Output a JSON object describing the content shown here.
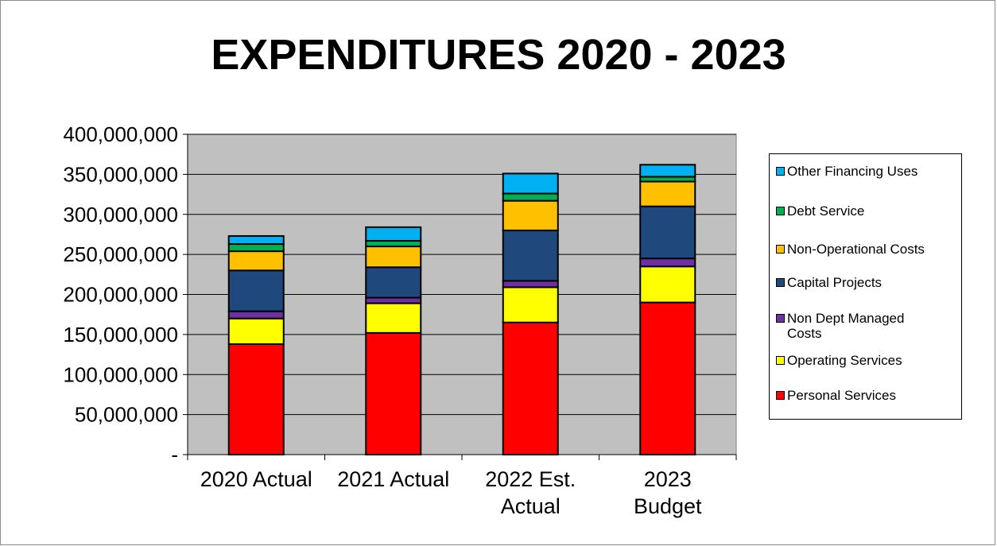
{
  "chart_data": {
    "type": "bar",
    "stacked": true,
    "title": "EXPENDITURES 2020 - 2023",
    "categories": [
      "2020 Actual",
      "2021 Actual",
      "2022 Est. Actual",
      "2023 Budget"
    ],
    "ylim": [
      0,
      400000000
    ],
    "yticks": [
      "-",
      "50,000,000",
      "100,000,000",
      "150,000,000",
      "200,000,000",
      "250,000,000",
      "300,000,000",
      "350,000,000",
      "400,000,000"
    ],
    "grid": true,
    "legend_position": "right",
    "series": [
      {
        "name": "Personal Services",
        "color": "#ff0000",
        "values": [
          138000000,
          152000000,
          165000000,
          190000000
        ]
      },
      {
        "name": "Operating Services",
        "color": "#ffff00",
        "values": [
          32000000,
          37000000,
          44000000,
          45000000
        ]
      },
      {
        "name": "Non Dept Managed Costs",
        "color": "#7030a0",
        "values": [
          9000000,
          7000000,
          8000000,
          10000000
        ]
      },
      {
        "name": "Capital Projects",
        "color": "#1f497d",
        "values": [
          51000000,
          38000000,
          63000000,
          65000000
        ]
      },
      {
        "name": "Non-Operational Costs",
        "color": "#ffc000",
        "values": [
          24000000,
          26000000,
          37000000,
          31000000
        ]
      },
      {
        "name": "Debt Service",
        "color": "#00b050",
        "values": [
          9000000,
          7000000,
          9000000,
          6000000
        ]
      },
      {
        "name": "Other Financing Uses",
        "color": "#00b0f0",
        "values": [
          10000000,
          17000000,
          25000000,
          15000000
        ]
      }
    ],
    "colors": {
      "plot_background": "#c0c0c0"
    }
  }
}
